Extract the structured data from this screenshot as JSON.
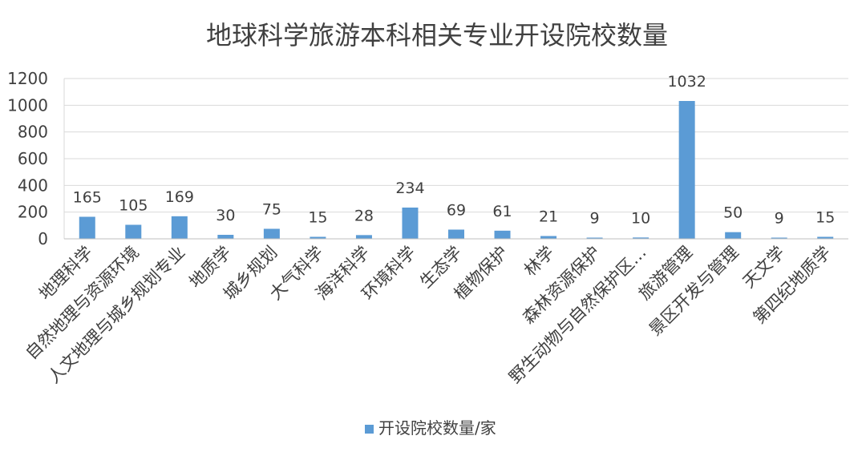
{
  "chart_data": {
    "type": "bar",
    "title": "地球科学旅游本科相关专业开设院校数量",
    "categories": [
      "地理科学",
      "自然地理与资源环境",
      "人文地理与城乡规划专业",
      "地质学",
      "城乡规划",
      "大气科学",
      "海洋科学",
      "环境科学",
      "生态学",
      "植物保护",
      "林学",
      "森林资源保护",
      "野生动物与自然保护区…",
      "旅游管理",
      "景区开发与管理",
      "天文学",
      "第四纪地质学"
    ],
    "series": [
      {
        "name": "开设院校数量/家",
        "values": [
          165,
          105,
          169,
          30,
          75,
          15,
          28,
          234,
          69,
          61,
          21,
          9,
          10,
          1032,
          50,
          9,
          15
        ]
      }
    ],
    "ylim": [
      0,
      1200
    ],
    "yticks": [
      "0",
      "200",
      "400",
      "600",
      "800",
      "1000",
      "1200"
    ],
    "grid": true,
    "legend_position": "bottom",
    "colors": {
      "bar": "#5b9bd5",
      "grid": "#d9d9d9",
      "text": "#404040",
      "title": "#404040"
    }
  }
}
